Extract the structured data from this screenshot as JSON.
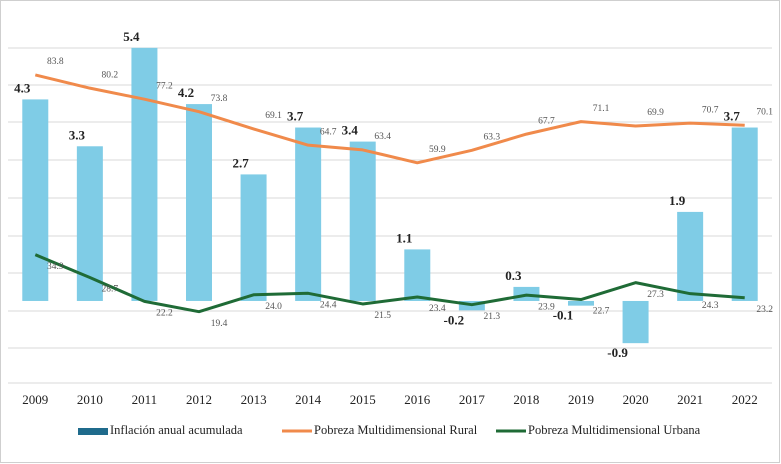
{
  "chart_data": {
    "type": "combo",
    "categories": [
      "2009",
      "2010",
      "2011",
      "2012",
      "2013",
      "2014",
      "2015",
      "2016",
      "2017",
      "2018",
      "2019",
      "2020",
      "2021",
      "2022"
    ],
    "ylim": [
      -1.75,
      6.25
    ],
    "y2lim": [
      0,
      102
    ],
    "series": [
      {
        "name": "Inflación anual acumulada",
        "type": "bar",
        "color": "#7fcce6",
        "legend_color": "#1f6b8c",
        "values": [
          4.3,
          3.3,
          5.4,
          4.2,
          2.7,
          3.7,
          3.4,
          1.1,
          -0.2,
          0.3,
          -0.1,
          -0.9,
          1.9,
          3.7
        ]
      },
      {
        "name": "Pobreza Multidimensional Rural",
        "type": "line",
        "axis": "y2",
        "color": "#f08a4b",
        "values": [
          83.8,
          80.2,
          77.2,
          73.8,
          69.1,
          64.7,
          63.4,
          59.9,
          63.3,
          67.7,
          71.1,
          69.9,
          70.7,
          70.1
        ]
      },
      {
        "name": "Pobreza Multidimensional Urbana",
        "type": "line",
        "axis": "y2",
        "color": "#1f6b36",
        "values": [
          34.9,
          28.7,
          22.2,
          19.4,
          24.0,
          24.4,
          21.5,
          23.4,
          21.3,
          23.9,
          22.7,
          27.3,
          24.3,
          23.2
        ],
        "value_labels": [
          "34.9",
          "28.7",
          "22.2",
          "19.4",
          "24.0",
          "24.4",
          "21.5",
          "23.4",
          "21.3",
          "23.9",
          "22.7",
          "27.3",
          "24.3",
          "23.2"
        ]
      }
    ]
  }
}
